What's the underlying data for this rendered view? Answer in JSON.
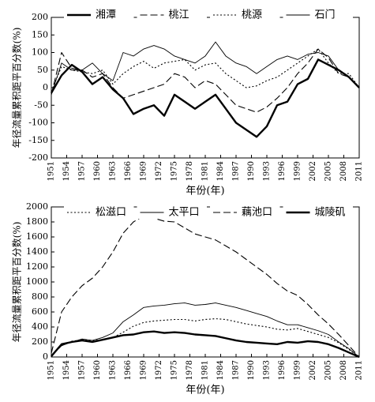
{
  "chart_data": [
    {
      "type": "line",
      "ylabel": "年径流量累积距平百分数(%)",
      "xlabel": "年份(年)",
      "legend": "top",
      "x": [
        1951,
        1953,
        1955,
        1957,
        1959,
        1961,
        1963,
        1965,
        1967,
        1969,
        1971,
        1973,
        1975,
        1977,
        1979,
        1981,
        1983,
        1985,
        1987,
        1989,
        1991,
        1993,
        1995,
        1997,
        1999,
        2001,
        2003,
        2005,
        2007,
        2009,
        2011
      ],
      "xlim": [
        1951,
        2011
      ],
      "xticks": [
        1951,
        1954,
        1957,
        1960,
        1963,
        1966,
        1969,
        1972,
        1975,
        1978,
        1981,
        1984,
        1987,
        1990,
        1993,
        1996,
        1999,
        2002,
        2005,
        2008,
        2011
      ],
      "ylim": [
        -200,
        200
      ],
      "yticks": [
        -200,
        -150,
        -100,
        -50,
        0,
        50,
        100,
        150,
        200
      ],
      "series": [
        {
          "name": "湘潭",
          "color": "#000000",
          "style": "thick",
          "values": [
            -15,
            35,
            65,
            45,
            10,
            30,
            -5,
            -30,
            -75,
            -60,
            -50,
            -80,
            -20,
            -40,
            -60,
            -40,
            -20,
            -60,
            -100,
            -120,
            -140,
            -110,
            -50,
            -40,
            10,
            25,
            80,
            65,
            50,
            30,
            0
          ]
        },
        {
          "name": "桃江",
          "color": "#000000",
          "style": "dashed",
          "values": [
            -20,
            100,
            55,
            50,
            30,
            40,
            0,
            -30,
            -20,
            -10,
            0,
            10,
            40,
            30,
            0,
            20,
            10,
            -20,
            -50,
            -60,
            -70,
            -55,
            -30,
            0,
            40,
            70,
            110,
            85,
            40,
            30,
            0
          ]
        },
        {
          "name": "桃源",
          "color": "#000000",
          "style": "dotted",
          "values": [
            -10,
            60,
            50,
            45,
            40,
            50,
            10,
            40,
            60,
            75,
            55,
            70,
            75,
            80,
            50,
            65,
            70,
            40,
            20,
            0,
            5,
            20,
            30,
            50,
            70,
            90,
            110,
            70,
            40,
            40,
            0
          ]
        },
        {
          "name": "石门",
          "color": "#000000",
          "style": "solid",
          "values": [
            -20,
            70,
            50,
            50,
            70,
            40,
            20,
            100,
            90,
            110,
            120,
            110,
            90,
            80,
            70,
            90,
            130,
            90,
            70,
            60,
            40,
            60,
            80,
            90,
            80,
            95,
            100,
            90,
            50,
            30,
            0
          ]
        }
      ]
    },
    {
      "type": "line",
      "ylabel": "年径流量累积距平百分数(%)",
      "xlabel": "年份(年)",
      "legend": "top",
      "x": [
        1951,
        1953,
        1955,
        1957,
        1959,
        1961,
        1963,
        1965,
        1967,
        1969,
        1971,
        1973,
        1975,
        1977,
        1979,
        1981,
        1983,
        1985,
        1987,
        1989,
        1991,
        1993,
        1995,
        1997,
        1999,
        2001,
        2003,
        2005,
        2007,
        2009,
        2011
      ],
      "xlim": [
        1951,
        2011
      ],
      "xticks": [
        1951,
        1954,
        1957,
        1960,
        1963,
        1966,
        1969,
        1972,
        1975,
        1978,
        1981,
        1984,
        1987,
        1990,
        1993,
        1996,
        1999,
        2002,
        2005,
        2008,
        2011
      ],
      "ylim": [
        0,
        2000
      ],
      "yticks": [
        0,
        200,
        400,
        600,
        800,
        1000,
        1200,
        1400,
        1600,
        1800,
        2000
      ],
      "series": [
        {
          "name": "松滋口",
          "color": "#000000",
          "style": "dotted",
          "values": [
            20,
            150,
            210,
            230,
            220,
            230,
            260,
            330,
            410,
            460,
            480,
            490,
            500,
            500,
            480,
            500,
            510,
            500,
            470,
            440,
            420,
            400,
            370,
            360,
            380,
            340,
            300,
            260,
            190,
            100,
            0
          ]
        },
        {
          "name": "太平口",
          "color": "#000000",
          "style": "solid",
          "values": [
            20,
            150,
            200,
            240,
            220,
            260,
            320,
            470,
            560,
            660,
            680,
            690,
            710,
            720,
            690,
            700,
            720,
            690,
            660,
            620,
            580,
            540,
            480,
            430,
            430,
            390,
            350,
            300,
            200,
            110,
            0
          ]
        },
        {
          "name": "藕池口",
          "color": "#000000",
          "style": "dashed",
          "values": [
            50,
            600,
            800,
            950,
            1050,
            1200,
            1400,
            1650,
            1800,
            1880,
            1850,
            1810,
            1800,
            1720,
            1640,
            1600,
            1560,
            1480,
            1400,
            1300,
            1200,
            1100,
            980,
            880,
            820,
            700,
            560,
            440,
            300,
            150,
            0
          ]
        },
        {
          "name": "城陵矶",
          "color": "#000000",
          "style": "thick",
          "values": [
            10,
            170,
            200,
            220,
            200,
            230,
            260,
            290,
            300,
            330,
            340,
            320,
            330,
            320,
            300,
            290,
            280,
            250,
            220,
            200,
            190,
            180,
            170,
            200,
            190,
            210,
            200,
            170,
            120,
            60,
            0
          ]
        }
      ]
    }
  ]
}
